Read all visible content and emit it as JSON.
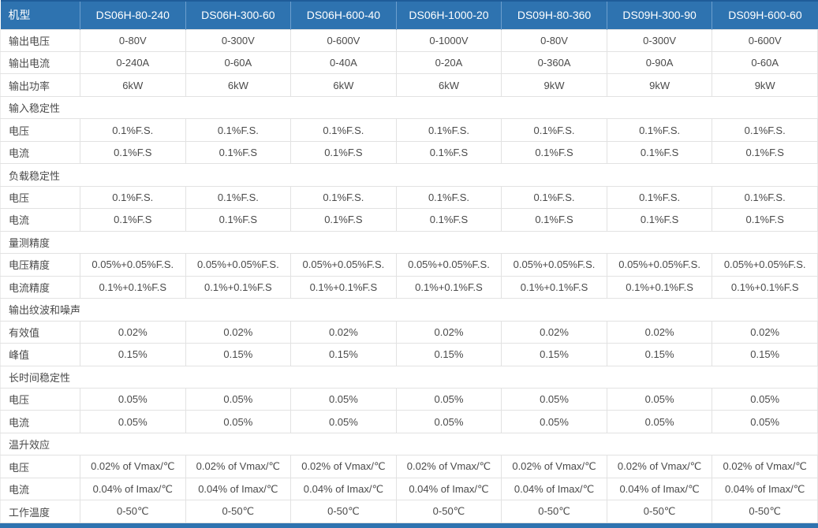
{
  "table": {
    "header": {
      "label": "机型",
      "models": [
        "DS06H-80-240",
        "DS06H-300-60",
        "DS06H-600-40",
        "DS06H-1000-20",
        "DS09H-80-360",
        "DS09H-300-90",
        "DS09H-600-60"
      ]
    },
    "rows": [
      {
        "type": "data",
        "label": "输出电压",
        "values": [
          "0-80V",
          "0-300V",
          "0-600V",
          "0-1000V",
          "0-80V",
          "0-300V",
          "0-600V"
        ]
      },
      {
        "type": "data",
        "label": "输出电流",
        "values": [
          "0-240A",
          "0-60A",
          "0-40A",
          "0-20A",
          "0-360A",
          "0-90A",
          "0-60A"
        ]
      },
      {
        "type": "data",
        "label": "输出功率",
        "values": [
          "6kW",
          "6kW",
          "6kW",
          "6kW",
          "9kW",
          "9kW",
          "9kW"
        ]
      },
      {
        "type": "section",
        "label": "输入稳定性"
      },
      {
        "type": "data",
        "label": "电压",
        "values": [
          "0.1%F.S.",
          "0.1%F.S.",
          "0.1%F.S.",
          "0.1%F.S.",
          "0.1%F.S.",
          "0.1%F.S.",
          "0.1%F.S."
        ]
      },
      {
        "type": "data",
        "label": "电流",
        "values": [
          "0.1%F.S",
          "0.1%F.S",
          "0.1%F.S",
          "0.1%F.S",
          "0.1%F.S",
          "0.1%F.S",
          "0.1%F.S"
        ]
      },
      {
        "type": "section",
        "label": "负载稳定性"
      },
      {
        "type": "data",
        "label": "电压",
        "values": [
          "0.1%F.S.",
          "0.1%F.S.",
          "0.1%F.S.",
          "0.1%F.S.",
          "0.1%F.S.",
          "0.1%F.S.",
          "0.1%F.S."
        ]
      },
      {
        "type": "data",
        "label": "电流",
        "values": [
          "0.1%F.S",
          "0.1%F.S",
          "0.1%F.S",
          "0.1%F.S",
          "0.1%F.S",
          "0.1%F.S",
          "0.1%F.S"
        ]
      },
      {
        "type": "section",
        "label": "量测精度"
      },
      {
        "type": "data",
        "label": "电压精度",
        "values": [
          "0.05%+0.05%F.S.",
          "0.05%+0.05%F.S.",
          "0.05%+0.05%F.S.",
          "0.05%+0.05%F.S.",
          "0.05%+0.05%F.S.",
          "0.05%+0.05%F.S.",
          "0.05%+0.05%F.S."
        ]
      },
      {
        "type": "data",
        "label": "电流精度",
        "values": [
          "0.1%+0.1%F.S",
          "0.1%+0.1%F.S",
          "0.1%+0.1%F.S",
          "0.1%+0.1%F.S",
          "0.1%+0.1%F.S",
          "0.1%+0.1%F.S",
          "0.1%+0.1%F.S"
        ]
      },
      {
        "type": "section",
        "label": "输出纹波和噪声"
      },
      {
        "type": "data",
        "label": "有效值",
        "values": [
          "0.02%",
          "0.02%",
          "0.02%",
          "0.02%",
          "0.02%",
          "0.02%",
          "0.02%"
        ]
      },
      {
        "type": "data",
        "label": "峰值",
        "values": [
          "0.15%",
          "0.15%",
          "0.15%",
          "0.15%",
          "0.15%",
          "0.15%",
          "0.15%"
        ]
      },
      {
        "type": "section",
        "label": "长时间稳定性"
      },
      {
        "type": "data",
        "label": "电压",
        "values": [
          "0.05%",
          "0.05%",
          "0.05%",
          "0.05%",
          "0.05%",
          "0.05%",
          "0.05%"
        ]
      },
      {
        "type": "data",
        "label": "电流",
        "values": [
          "0.05%",
          "0.05%",
          "0.05%",
          "0.05%",
          "0.05%",
          "0.05%",
          "0.05%"
        ]
      },
      {
        "type": "section",
        "label": "温升效应"
      },
      {
        "type": "data",
        "label": "电压",
        "values": [
          "0.02% of Vmax/℃",
          "0.02% of Vmax/℃",
          "0.02% of Vmax/℃",
          "0.02% of Vmax/℃",
          "0.02% of Vmax/℃",
          "0.02% of Vmax/℃",
          "0.02% of Vmax/℃"
        ]
      },
      {
        "type": "data",
        "label": "电流",
        "values": [
          "0.04% of Imax/℃",
          "0.04% of Imax/℃",
          "0.04% of Imax/℃",
          "0.04% of Imax/℃",
          "0.04% of Imax/℃",
          "0.04% of Imax/℃",
          "0.04% of Imax/℃"
        ]
      },
      {
        "type": "data",
        "label": "工作温度",
        "values": [
          "0-50℃",
          "0-50℃",
          "0-50℃",
          "0-50℃",
          "0-50℃",
          "0-50℃",
          "0-50℃"
        ]
      }
    ]
  },
  "colors": {
    "header_bg": "#2e73b0",
    "header_top_border": "#1f5c99",
    "header_divider": "#6d9fce",
    "body_border": "#e2e2e2",
    "text": "#4a4a4a",
    "bottom_bar": "#2e73b0"
  }
}
